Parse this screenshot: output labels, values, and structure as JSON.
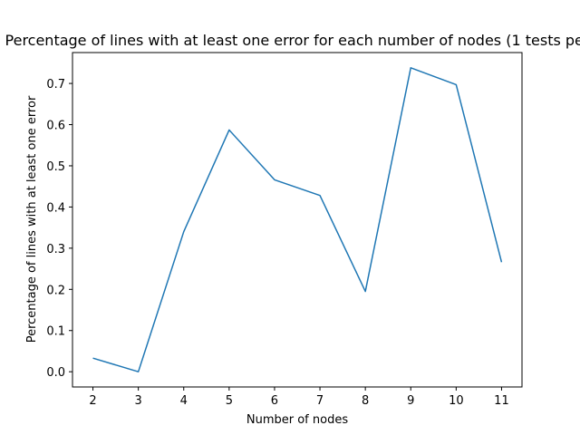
{
  "chart_data": {
    "type": "line",
    "title": "Percentage of lines with at least one error for each number of nodes (1 tests per",
    "xlabel": "Number of nodes",
    "ylabel": "Percentage of lines with at least one error",
    "x": [
      2,
      3,
      4,
      5,
      6,
      7,
      8,
      9,
      10,
      11
    ],
    "xticks": [
      "2",
      "3",
      "4",
      "5",
      "6",
      "7",
      "8",
      "9",
      "10",
      "11"
    ],
    "yticks": [
      "0.0",
      "0.1",
      "0.2",
      "0.3",
      "0.4",
      "0.5",
      "0.6",
      "0.7"
    ],
    "ylim": [
      -0.037,
      0.775
    ],
    "xlim": [
      1.55,
      11.45
    ],
    "grid": false,
    "series": [
      {
        "color": "#1f77b4",
        "values": [
          0.033,
          0.0,
          0.34,
          0.587,
          0.466,
          0.428,
          0.195,
          0.738,
          0.697,
          0.266
        ]
      }
    ]
  }
}
